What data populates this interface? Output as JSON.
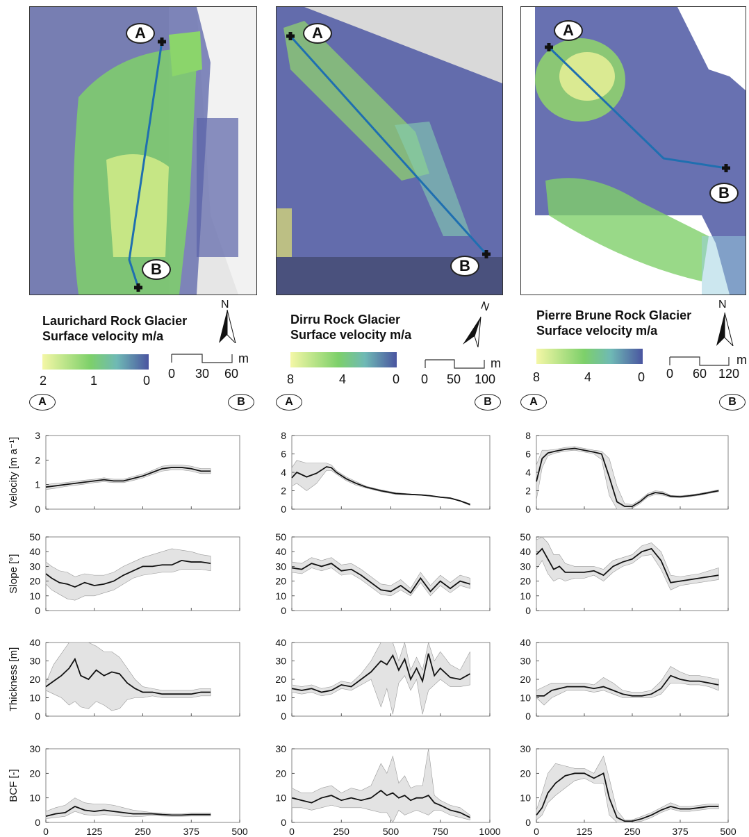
{
  "panels": [
    {
      "title_line1": "Laurichard Rock Glacier",
      "title_line2": "Surface velocity m/a",
      "colorbar_ticks": [
        "2",
        "1",
        "0"
      ],
      "scale_ticks": [
        "0",
        "30",
        "60"
      ],
      "scale_unit": "m",
      "north": "N",
      "point_a": "A",
      "point_b": "B"
    },
    {
      "title_line1": "Dirru Rock Glacier",
      "title_line2": "Surface velocity m/a",
      "colorbar_ticks": [
        "8",
        "4",
        "0"
      ],
      "scale_ticks": [
        "0",
        "50",
        "100"
      ],
      "scale_unit": "m",
      "north": "N",
      "point_a": "A",
      "point_b": "B"
    },
    {
      "title_line1": "Pierre Brune Rock Glacier",
      "title_line2": "Surface velocity m/a",
      "colorbar_ticks": [
        "8",
        "4",
        "0"
      ],
      "scale_ticks": [
        "0",
        "60",
        "120"
      ],
      "scale_unit": "m",
      "north": "N",
      "point_a": "A",
      "point_b": "B"
    }
  ],
  "colors": {
    "velocity_high": "#f4f7a6",
    "velocity_mid": "#7dd06a",
    "velocity_low": "#4a55a0",
    "profile_line": "#1f6fb0",
    "uncertainty_band": "#e3e3e3",
    "line": "#111111"
  },
  "chart_data": [
    {
      "type": "line",
      "column": 0,
      "ylabel": "Velocity [m a⁻¹]",
      "ylim": [
        0,
        3
      ],
      "yticks": [
        0,
        1,
        2,
        3
      ],
      "xlim": [
        0,
        500
      ],
      "xticks": [
        0,
        125,
        250,
        375,
        500
      ],
      "x": [
        0,
        25,
        50,
        75,
        100,
        125,
        150,
        175,
        200,
        225,
        250,
        275,
        300,
        325,
        350,
        375,
        400,
        425
      ],
      "values": [
        0.9,
        0.95,
        1.0,
        1.05,
        1.1,
        1.15,
        1.2,
        1.15,
        1.15,
        1.25,
        1.35,
        1.5,
        1.65,
        1.7,
        1.7,
        1.65,
        1.55,
        1.55
      ],
      "band_lo": [
        0.8,
        0.85,
        0.92,
        0.97,
        1.02,
        1.08,
        1.12,
        1.08,
        1.08,
        1.17,
        1.27,
        1.42,
        1.55,
        1.6,
        1.6,
        1.55,
        1.45,
        1.45
      ],
      "band_hi": [
        1.0,
        1.05,
        1.08,
        1.13,
        1.18,
        1.22,
        1.28,
        1.22,
        1.22,
        1.33,
        1.43,
        1.58,
        1.75,
        1.8,
        1.8,
        1.75,
        1.65,
        1.65
      ]
    },
    {
      "type": "line",
      "column": 1,
      "ylabel": "",
      "ylim": [
        0,
        8
      ],
      "yticks": [
        0,
        2,
        4,
        6,
        8
      ],
      "xlim": [
        0,
        1000
      ],
      "xticks": [
        0,
        250,
        500,
        750,
        1000
      ],
      "x": [
        0,
        25,
        75,
        125,
        175,
        200,
        225,
        275,
        325,
        375,
        450,
        525,
        600,
        650,
        700,
        750,
        800,
        850,
        900
      ],
      "values": [
        3.4,
        4.0,
        3.5,
        3.9,
        4.6,
        4.5,
        4.0,
        3.3,
        2.8,
        2.4,
        2.0,
        1.7,
        1.6,
        1.55,
        1.45,
        1.3,
        1.2,
        0.9,
        0.5
      ],
      "band_lo": [
        2.5,
        2.8,
        2.0,
        2.8,
        4.2,
        4.2,
        3.8,
        3.1,
        2.6,
        2.3,
        1.9,
        1.6,
        1.55,
        1.5,
        1.4,
        1.25,
        1.15,
        0.85,
        0.4
      ],
      "band_hi": [
        4.5,
        5.3,
        5.0,
        5.0,
        5.0,
        4.8,
        4.2,
        3.5,
        3.0,
        2.5,
        2.1,
        1.8,
        1.65,
        1.6,
        1.5,
        1.35,
        1.25,
        0.95,
        0.6
      ]
    },
    {
      "type": "line",
      "column": 2,
      "ylabel": "",
      "ylim": [
        0,
        8
      ],
      "yticks": [
        0,
        2,
        4,
        6,
        8
      ],
      "xlim": [
        0,
        500
      ],
      "xticks": [
        0,
        125,
        250,
        375,
        500
      ],
      "x": [
        0,
        15,
        30,
        50,
        75,
        100,
        125,
        150,
        170,
        190,
        210,
        230,
        250,
        270,
        290,
        310,
        330,
        350,
        375,
        400,
        425,
        450,
        475
      ],
      "values": [
        3.0,
        5.5,
        6.1,
        6.3,
        6.5,
        6.6,
        6.4,
        6.2,
        6.0,
        3.5,
        0.8,
        0.3,
        0.3,
        0.8,
        1.5,
        1.8,
        1.7,
        1.4,
        1.35,
        1.45,
        1.6,
        1.8,
        2.0
      ],
      "band_lo": [
        1.0,
        4.5,
        5.8,
        6.1,
        6.3,
        6.4,
        6.2,
        6.0,
        5.4,
        1.5,
        0.0,
        0.0,
        0.1,
        0.6,
        1.3,
        1.6,
        1.5,
        1.3,
        1.25,
        1.35,
        1.5,
        1.7,
        1.9
      ],
      "band_hi": [
        4.8,
        6.4,
        6.4,
        6.5,
        6.7,
        6.8,
        6.6,
        6.4,
        6.3,
        5.5,
        2.5,
        0.6,
        0.5,
        1.0,
        1.7,
        2.0,
        1.9,
        1.5,
        1.45,
        1.55,
        1.7,
        1.9,
        2.1
      ]
    },
    {
      "type": "line",
      "column": 0,
      "ylabel": "Slope [°]",
      "ylim": [
        0,
        50
      ],
      "yticks": [
        0,
        10,
        20,
        30,
        40,
        50
      ],
      "xlim": [
        0,
        500
      ],
      "xticks": [
        0,
        125,
        250,
        375,
        500
      ],
      "x": [
        0,
        15,
        35,
        55,
        75,
        100,
        125,
        150,
        175,
        200,
        225,
        250,
        275,
        300,
        325,
        350,
        375,
        400,
        425
      ],
      "values": [
        25,
        22,
        19,
        18,
        16,
        19,
        17,
        18,
        20,
        24,
        27,
        30,
        30,
        31,
        31,
        34,
        33,
        33,
        32
      ],
      "band_lo": [
        18,
        14,
        11,
        8,
        7,
        10,
        10,
        12,
        14,
        18,
        22,
        24,
        25,
        26,
        26,
        28,
        28,
        28,
        27
      ],
      "band_hi": [
        33,
        30,
        27,
        26,
        23,
        25,
        24,
        24,
        26,
        30,
        33,
        36,
        38,
        40,
        42,
        41,
        40,
        38,
        37
      ]
    },
    {
      "type": "line",
      "column": 1,
      "ylabel": "",
      "ylim": [
        0,
        50
      ],
      "yticks": [
        0,
        10,
        20,
        30,
        40,
        50
      ],
      "xlim": [
        0,
        1000
      ],
      "xticks": [
        0,
        250,
        500,
        750,
        1000
      ],
      "x": [
        0,
        50,
        100,
        150,
        200,
        250,
        300,
        350,
        400,
        450,
        500,
        550,
        600,
        650,
        700,
        750,
        800,
        850,
        900
      ],
      "values": [
        29,
        28,
        32,
        30,
        32,
        27,
        28,
        24,
        19,
        14,
        13,
        17,
        12,
        22,
        13,
        20,
        15,
        20,
        18
      ],
      "band_lo": [
        26,
        25,
        29,
        27,
        29,
        24,
        25,
        21,
        16,
        11,
        10,
        14,
        10,
        19,
        10,
        17,
        12,
        17,
        15
      ],
      "band_hi": [
        33,
        32,
        36,
        34,
        36,
        31,
        32,
        28,
        23,
        18,
        17,
        21,
        15,
        26,
        17,
        24,
        19,
        24,
        22
      ]
    },
    {
      "type": "line",
      "column": 2,
      "ylabel": "",
      "ylim": [
        0,
        50
      ],
      "yticks": [
        0,
        10,
        20,
        30,
        40,
        50
      ],
      "xlim": [
        0,
        500
      ],
      "xticks": [
        0,
        125,
        250,
        375,
        500
      ],
      "x": [
        0,
        15,
        30,
        45,
        60,
        75,
        100,
        125,
        150,
        175,
        200,
        225,
        250,
        275,
        300,
        325,
        350,
        375,
        400,
        425,
        450,
        475
      ],
      "values": [
        38,
        42,
        35,
        28,
        30,
        26,
        26,
        26,
        27,
        24,
        30,
        33,
        35,
        40,
        42,
        34,
        19,
        20,
        21,
        22,
        23,
        24
      ],
      "band_lo": [
        28,
        34,
        25,
        20,
        22,
        20,
        22,
        22,
        24,
        20,
        26,
        30,
        32,
        37,
        38,
        28,
        14,
        17,
        18,
        19,
        20,
        21
      ],
      "band_hi": [
        48,
        50,
        46,
        38,
        38,
        32,
        30,
        30,
        30,
        28,
        34,
        36,
        38,
        44,
        46,
        40,
        24,
        23,
        24,
        25,
        27,
        29
      ]
    },
    {
      "type": "line",
      "column": 0,
      "ylabel": "Thickness [m]",
      "ylim": [
        0,
        40
      ],
      "yticks": [
        0,
        10,
        20,
        30,
        40
      ],
      "xlim": [
        0,
        500
      ],
      "xticks": [
        0,
        125,
        250,
        375,
        500
      ],
      "x": [
        0,
        20,
        40,
        60,
        75,
        90,
        110,
        130,
        150,
        170,
        190,
        210,
        230,
        250,
        275,
        300,
        325,
        350,
        375,
        400,
        425
      ],
      "values": [
        16,
        19,
        22,
        26,
        31,
        22,
        20,
        25,
        22,
        24,
        23,
        18,
        15,
        13,
        13,
        12,
        12,
        12,
        12,
        13,
        13
      ],
      "band_lo": [
        14,
        12,
        10,
        6,
        8,
        5,
        4,
        8,
        6,
        3,
        4,
        9,
        10,
        10,
        11,
        10,
        10,
        10,
        10,
        11,
        11
      ],
      "band_hi": [
        18,
        28,
        34,
        40,
        40,
        40,
        40,
        38,
        35,
        35,
        32,
        26,
        20,
        16,
        15,
        14,
        14,
        14,
        14,
        15,
        15
      ]
    },
    {
      "type": "line",
      "column": 1,
      "ylabel": "",
      "ylim": [
        0,
        40
      ],
      "yticks": [
        0,
        10,
        20,
        30,
        40
      ],
      "xlim": [
        0,
        1000
      ],
      "xticks": [
        0,
        250,
        500,
        750,
        1000
      ],
      "x": [
        0,
        50,
        100,
        150,
        200,
        250,
        300,
        350,
        400,
        450,
        480,
        510,
        540,
        570,
        600,
        630,
        660,
        690,
        720,
        750,
        800,
        850,
        900
      ],
      "values": [
        15,
        14,
        15,
        13,
        14,
        17,
        16,
        20,
        24,
        30,
        28,
        33,
        25,
        31,
        20,
        26,
        19,
        34,
        22,
        26,
        21,
        20,
        23
      ],
      "band_lo": [
        13,
        12,
        13,
        11,
        12,
        15,
        14,
        17,
        20,
        5,
        15,
        1,
        18,
        22,
        14,
        20,
        1,
        14,
        17,
        20,
        16,
        16,
        17
      ],
      "band_hi": [
        17,
        16,
        17,
        15,
        16,
        19,
        18,
        23,
        30,
        40,
        40,
        40,
        30,
        40,
        25,
        32,
        25,
        40,
        30,
        35,
        28,
        25,
        35
      ]
    },
    {
      "type": "line",
      "column": 2,
      "ylabel": "",
      "ylim": [
        0,
        40
      ],
      "yticks": [
        0,
        10,
        20,
        30,
        40
      ],
      "xlim": [
        0,
        500
      ],
      "xticks": [
        0,
        125,
        250,
        375,
        500
      ],
      "x": [
        0,
        20,
        40,
        60,
        80,
        100,
        125,
        150,
        175,
        200,
        225,
        250,
        275,
        300,
        325,
        350,
        375,
        400,
        425,
        450,
        475
      ],
      "values": [
        11,
        11,
        14,
        15,
        16,
        16,
        16,
        15,
        16,
        14,
        12,
        11,
        11,
        12,
        15,
        22,
        20,
        19,
        19,
        18,
        17
      ],
      "band_lo": [
        10,
        6,
        10,
        12,
        14,
        14,
        14,
        13,
        14,
        12,
        10,
        10,
        10,
        10,
        12,
        18,
        18,
        17,
        17,
        16,
        14
      ],
      "band_hi": [
        14,
        16,
        18,
        18,
        18,
        18,
        18,
        17,
        21,
        18,
        14,
        13,
        13,
        14,
        19,
        27,
        24,
        22,
        22,
        21,
        20
      ]
    },
    {
      "type": "line",
      "column": 0,
      "ylabel": "BCF [-]",
      "ylim": [
        0,
        30
      ],
      "yticks": [
        0,
        10,
        20,
        30
      ],
      "xlim": [
        0,
        500
      ],
      "xticks": [
        0,
        125,
        250,
        375,
        500
      ],
      "x": [
        0,
        25,
        50,
        75,
        100,
        125,
        150,
        175,
        200,
        225,
        250,
        275,
        300,
        325,
        350,
        375,
        400,
        425
      ],
      "values": [
        2.5,
        3.5,
        4.0,
        6.5,
        5.0,
        4.5,
        5.0,
        4.5,
        4.0,
        3.5,
        3.5,
        3.5,
        3.2,
        3.0,
        3.0,
        3.2,
        3.2,
        3.2
      ],
      "band_lo": [
        1.5,
        2.0,
        2.5,
        4.5,
        3.2,
        2.8,
        3.2,
        2.8,
        2.5,
        2.3,
        2.5,
        2.8,
        2.6,
        2.5,
        2.5,
        2.6,
        2.6,
        2.6
      ],
      "band_hi": [
        4.5,
        6.0,
        7.0,
        10.0,
        8.0,
        7.5,
        7.5,
        7.0,
        6.0,
        5.0,
        4.5,
        4.0,
        3.8,
        3.5,
        3.5,
        3.8,
        3.8,
        3.8
      ]
    },
    {
      "type": "line",
      "column": 1,
      "ylabel": "",
      "ylim": [
        0,
        30
      ],
      "yticks": [
        0,
        10,
        20,
        30
      ],
      "xlim": [
        0,
        1000
      ],
      "xticks": [
        0,
        250,
        500,
        750,
        1000
      ],
      "x": [
        0,
        50,
        100,
        150,
        200,
        250,
        300,
        350,
        400,
        450,
        480,
        510,
        540,
        570,
        600,
        630,
        660,
        690,
        720,
        750,
        800,
        850,
        900
      ],
      "values": [
        10,
        9,
        8,
        10,
        11,
        9,
        10,
        9,
        10,
        13,
        11,
        12,
        10,
        11,
        9,
        10,
        10,
        11,
        8,
        7,
        5,
        4,
        2
      ],
      "band_lo": [
        6,
        6,
        5,
        6,
        7,
        6,
        6,
        6,
        5,
        4,
        4,
        0,
        5,
        3,
        4,
        5,
        4,
        3,
        5,
        5,
        3,
        2,
        1
      ],
      "band_hi": [
        14,
        12,
        12,
        14,
        15,
        12,
        14,
        13,
        15,
        24,
        20,
        27,
        16,
        19,
        14,
        15,
        15,
        30,
        11,
        9,
        7,
        6,
        3
      ]
    },
    {
      "type": "line",
      "column": 2,
      "ylabel": "",
      "ylim": [
        0,
        30
      ],
      "yticks": [
        0,
        10,
        20,
        30
      ],
      "xlim": [
        0,
        500
      ],
      "xticks": [
        0,
        125,
        250,
        375,
        500
      ],
      "x": [
        0,
        15,
        30,
        50,
        75,
        100,
        125,
        150,
        175,
        190,
        210,
        230,
        250,
        275,
        300,
        325,
        350,
        375,
        400,
        425,
        450,
        475
      ],
      "values": [
        3,
        6,
        12,
        16,
        19,
        20,
        20,
        18,
        20,
        10,
        2,
        0.5,
        0.5,
        1.5,
        3,
        5,
        6.5,
        5.5,
        5.5,
        6,
        6.5,
        6.5
      ],
      "band_lo": [
        1,
        3,
        8,
        11,
        14,
        17,
        18,
        16,
        16,
        3,
        0,
        0,
        0,
        0.5,
        2,
        4,
        5.5,
        4.5,
        4.5,
        5,
        5.5,
        5.5
      ],
      "band_hi": [
        5,
        12,
        20,
        24,
        23,
        22,
        22,
        20,
        27,
        18,
        5,
        1,
        1,
        2.5,
        4,
        6,
        8,
        6.5,
        6.5,
        7,
        7.5,
        7.5
      ]
    }
  ]
}
